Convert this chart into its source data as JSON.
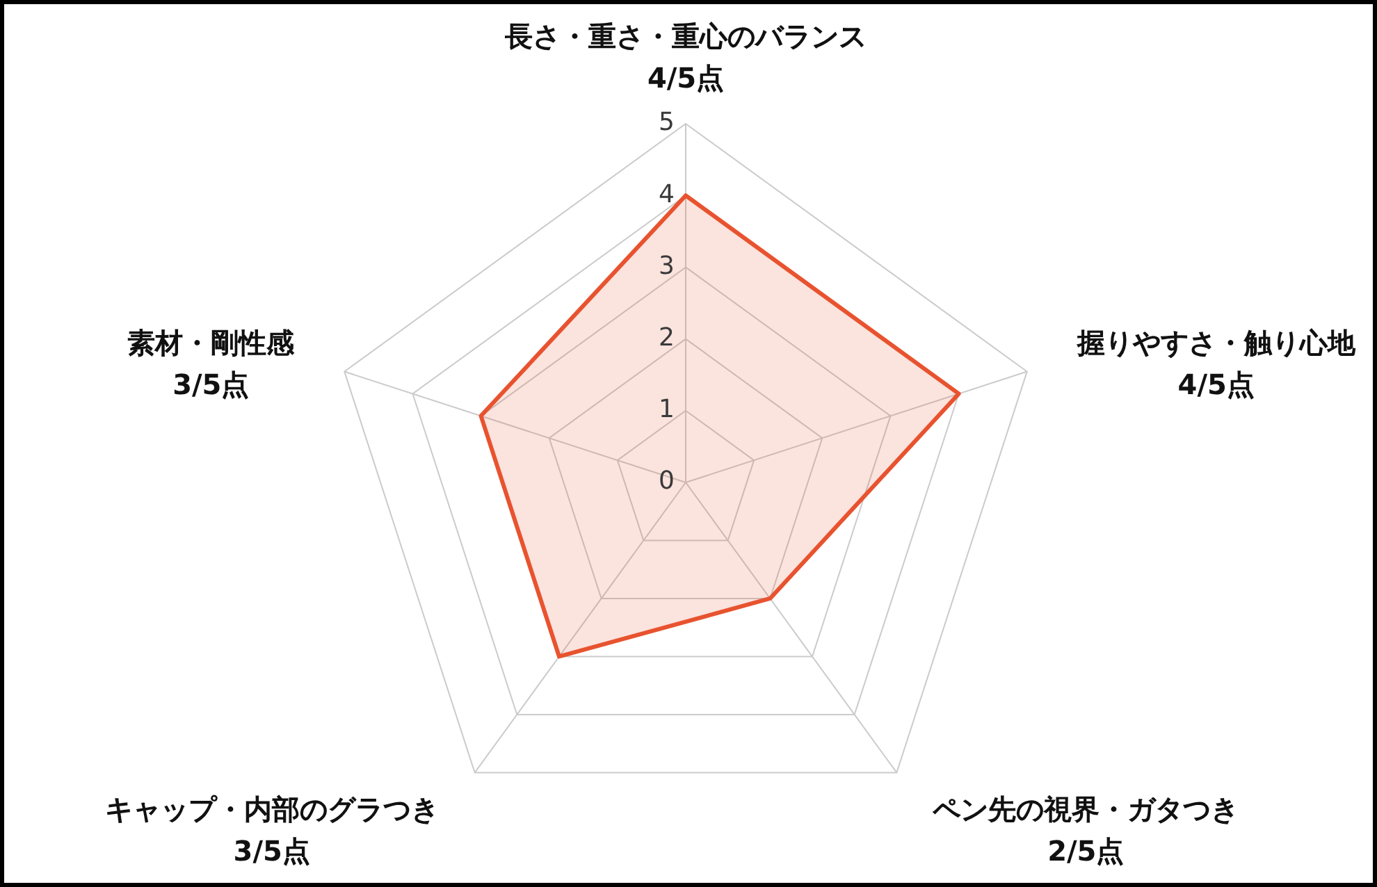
{
  "chart_data": {
    "type": "radar",
    "categories": [
      "長さ・重さ・重心のバランス\n4/5点",
      "握りやすさ・触り心地\n4/5点",
      "ペン先の視界・ガタつき\n2/5点",
      "キャップ・内部のグラつき\n3/5点",
      "素材・剛性感\n3/5点"
    ],
    "values": [
      4,
      4,
      2,
      3,
      3
    ],
    "color": "#e8532f",
    "ylim": [
      0,
      5
    ],
    "yticks": [
      0,
      1,
      2,
      3,
      4,
      5
    ],
    "grid": true,
    "marker": "none"
  }
}
